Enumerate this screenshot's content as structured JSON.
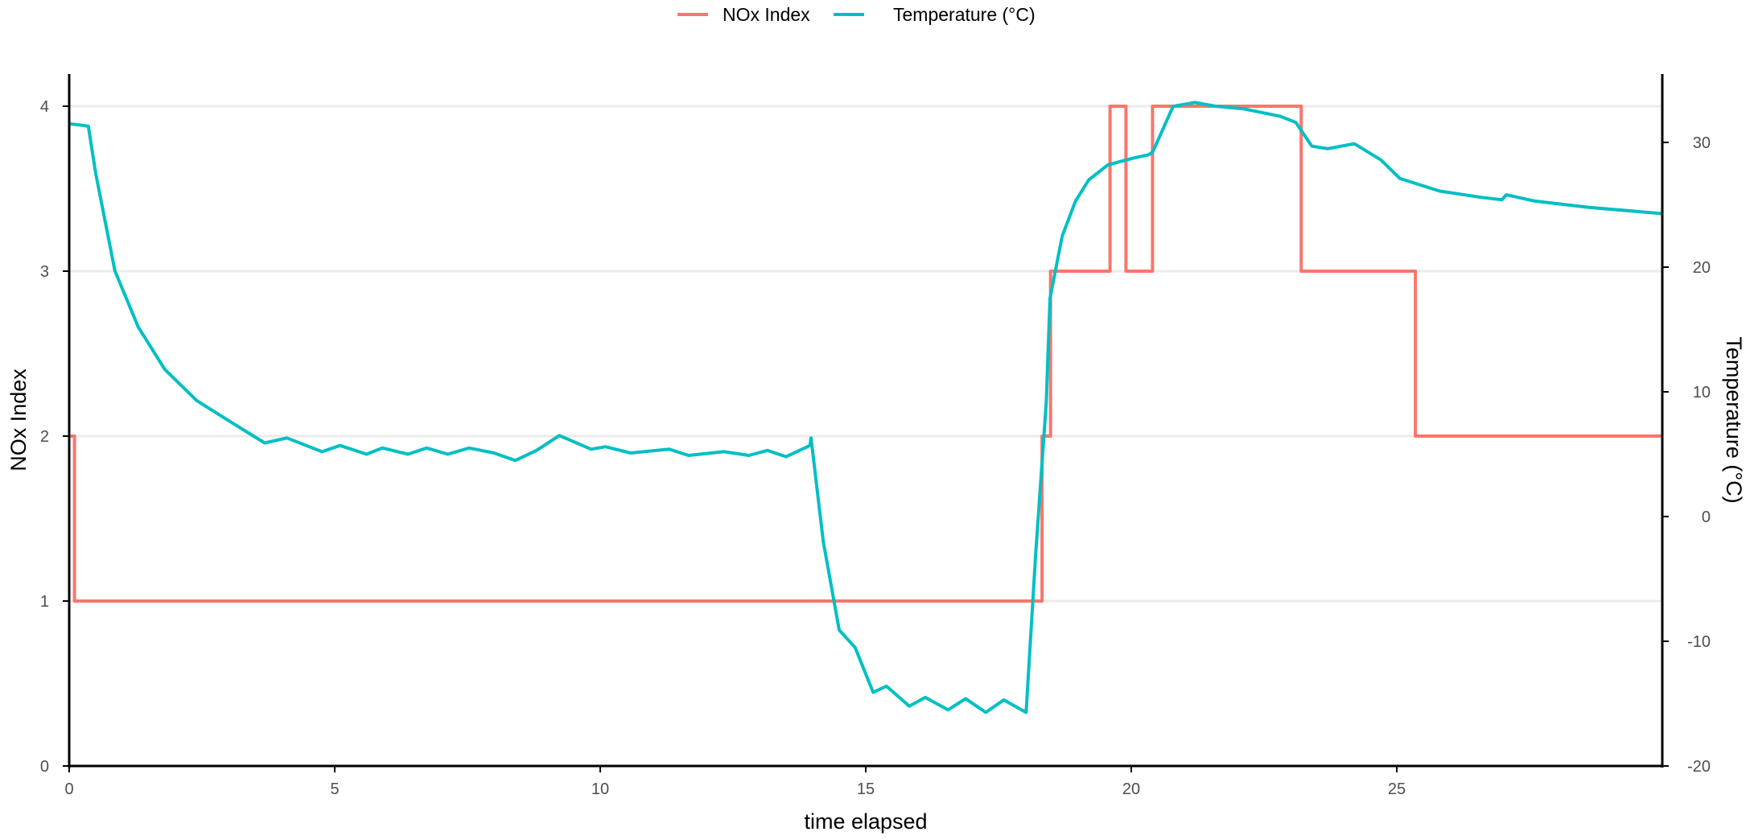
{
  "chart_data": {
    "type": "line",
    "title": "",
    "xlabel": "time elapsed",
    "ylabel": "NOx Index",
    "ylabel_right": "Temperature (°C)",
    "xlim": [
      0,
      30
    ],
    "ylim": [
      0,
      4
    ],
    "ylim_right": [
      -20,
      35
    ],
    "x_ticks": [
      0,
      5,
      10,
      15,
      20,
      25
    ],
    "y_ticks": [
      0,
      1,
      2,
      3,
      4
    ],
    "y_ticks_right": [
      -20,
      -10,
      0,
      10,
      20,
      30
    ],
    "grid": "horizontal major (left axis)",
    "legend": {
      "position": "top",
      "entries": [
        "NOx Index",
        "Temperature (°C)"
      ]
    },
    "series": [
      {
        "name": "NOx Index",
        "axis": "left",
        "color": "#F8766D",
        "step": true,
        "x": [
          0,
          0.1,
          18.32,
          18.48,
          19.6,
          19.9,
          20.4,
          23.2,
          25.35,
          30
        ],
        "values": [
          2,
          1,
          2,
          3,
          4,
          3,
          4,
          3,
          2,
          2
        ]
      },
      {
        "name": "Temperature (°C)",
        "axis": "right",
        "color": "#00BFC4",
        "step": false,
        "x": [
          0,
          0.2,
          0.36,
          0.5,
          0.86,
          1.3,
          1.8,
          2.4,
          3.0,
          3.68,
          4.1,
          4.76,
          5.1,
          5.6,
          5.9,
          6.38,
          6.73,
          7.13,
          7.53,
          8.0,
          8.4,
          8.8,
          9.23,
          9.83,
          10.1,
          10.57,
          11.3,
          11.66,
          12.33,
          12.8,
          13.15,
          13.5,
          13.95,
          13.97,
          14.2,
          14.5,
          14.8,
          15.14,
          15.39,
          15.82,
          16.12,
          16.55,
          16.88,
          17.26,
          17.6,
          18.02,
          18.2,
          18.4,
          18.47,
          18.7,
          18.95,
          19.2,
          19.56,
          20.0,
          20.32,
          20.4,
          20.79,
          21.2,
          21.6,
          22.1,
          22.8,
          23.1,
          23.4,
          23.7,
          24.2,
          24.7,
          25.06,
          25.36,
          25.8,
          26.58,
          26.98,
          27.06,
          27.6,
          28.6,
          29.98
        ],
        "values": [
          31.5,
          31.4,
          31.3,
          27.5,
          19.7,
          15.2,
          11.8,
          9.3,
          7.7,
          5.9,
          6.3,
          5.2,
          5.7,
          5.0,
          5.5,
          5.0,
          5.5,
          5.0,
          5.5,
          5.1,
          4.5,
          5.3,
          6.5,
          5.4,
          5.6,
          5.1,
          5.4,
          4.9,
          5.2,
          4.9,
          5.3,
          4.8,
          5.7,
          6.3,
          -2.0,
          -9.1,
          -10.5,
          -14.1,
          -13.6,
          -15.2,
          -14.5,
          -15.5,
          -14.6,
          -15.7,
          -14.7,
          -15.7,
          -3.0,
          9.2,
          17.5,
          22.5,
          25.3,
          27.0,
          28.2,
          28.7,
          29.0,
          29.2,
          32.9,
          33.2,
          32.9,
          32.7,
          32.1,
          31.6,
          29.7,
          29.5,
          29.9,
          28.6,
          27.1,
          26.7,
          26.1,
          25.6,
          25.4,
          25.8,
          25.3,
          24.8,
          24.3
        ]
      }
    ]
  },
  "labels": {
    "xlabel": "time elapsed",
    "ylabel": "NOx Index",
    "ylabel_right": "Temperature (°C)",
    "legend_nox": "NOx Index",
    "legend_temp": "Temperature (°C)"
  }
}
